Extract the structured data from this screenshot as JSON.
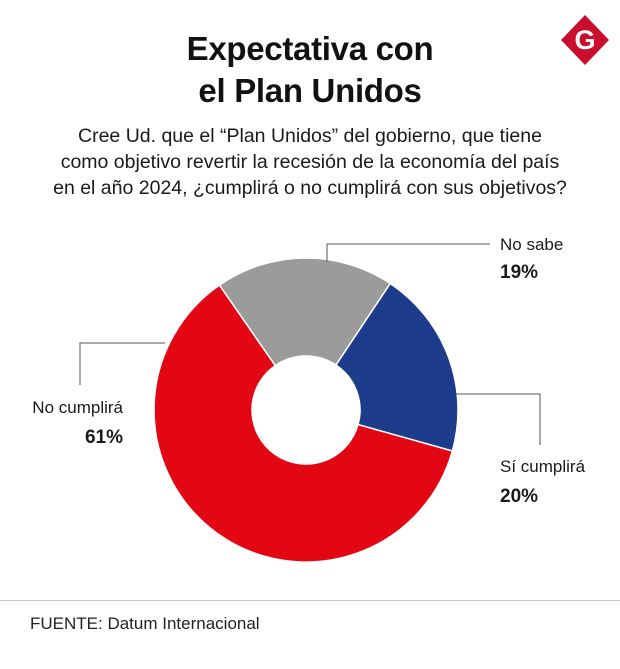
{
  "header": {
    "title_line1": "Expectativa con",
    "title_line2": "el Plan Unidos",
    "logo_letter": "G"
  },
  "question": {
    "line1": "Cree Ud. que el “Plan Unidos” del gobierno, que tiene",
    "line2": "como objetivo revertir la recesión de la economía del país",
    "line3": "en el año 2024, ¿cumplirá o no cumplirá con sus objetivos?"
  },
  "chart_data": {
    "type": "pie",
    "donut": true,
    "title": "Expectativa con el Plan Unidos",
    "slices": [
      {
        "label": "No sabe",
        "value": 19,
        "display": "19%",
        "color": "#9b9b9b"
      },
      {
        "label": "Sí cumplirá",
        "value": 20,
        "display": "20%",
        "color": "#1e3c8c"
      },
      {
        "label": "No cumplirá",
        "value": 61,
        "display": "61%",
        "color": "#e30613"
      }
    ]
  },
  "footer": {
    "source": "FUENTE: Datum Internacional"
  },
  "colors": {
    "brand": "#c8102e"
  }
}
